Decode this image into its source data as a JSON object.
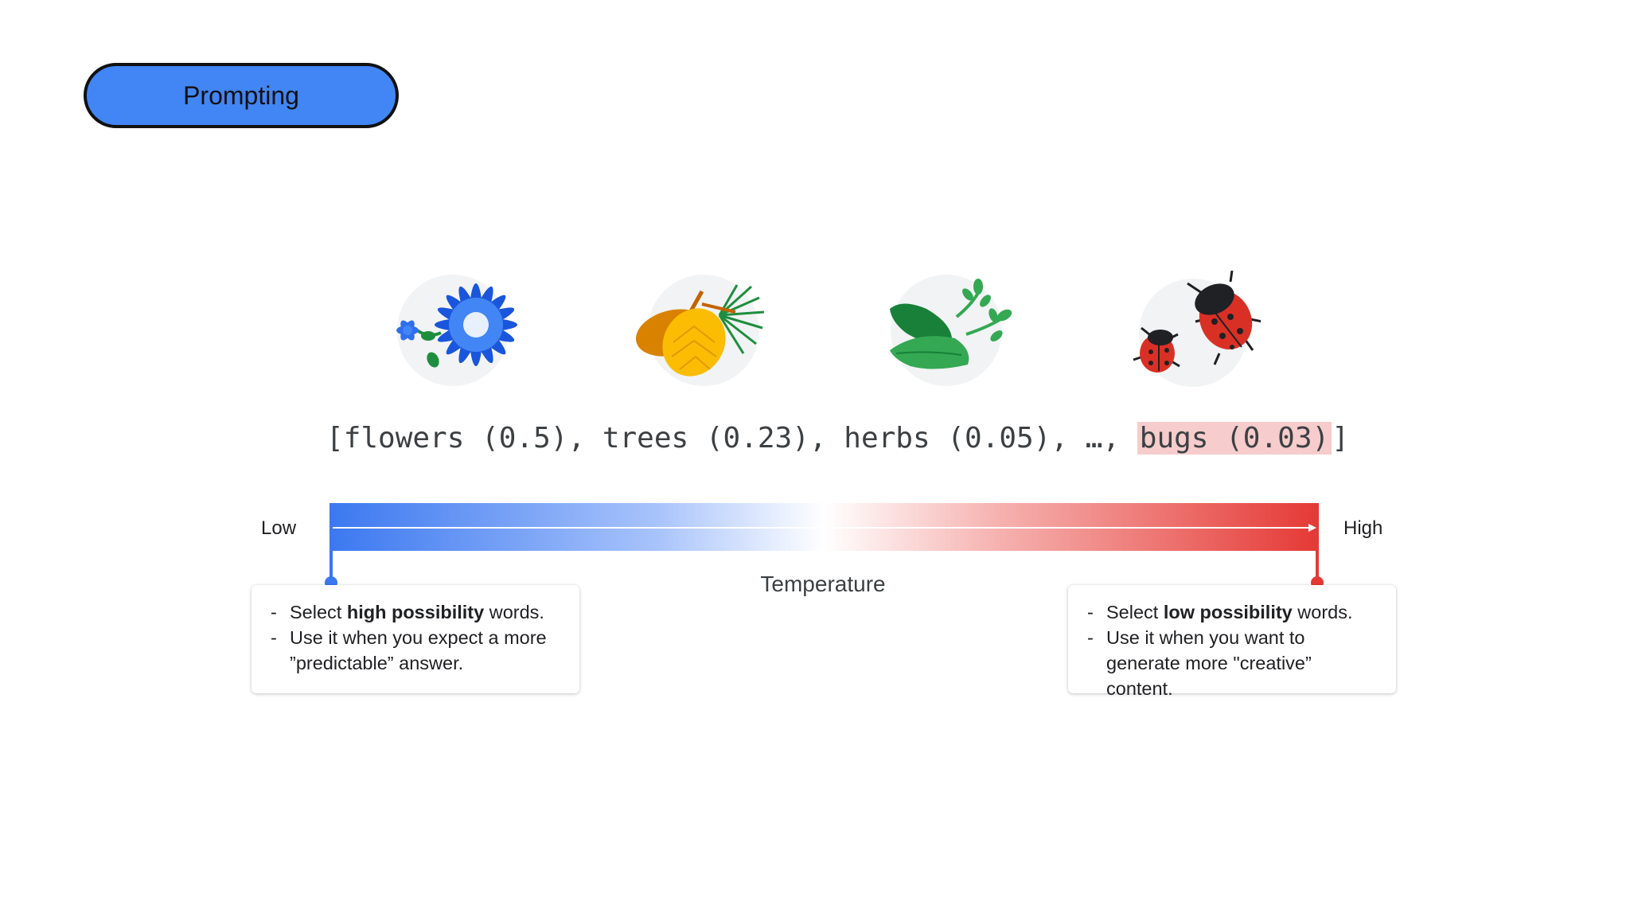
{
  "header": {
    "pill_label": "Prompting"
  },
  "tokens": {
    "open_bracket": "[",
    "items": [
      {
        "text": "flowers (0.5)",
        "separator": ", "
      },
      {
        "text": "trees (0.23)",
        "separator": ", "
      },
      {
        "text": "herbs (0.05)",
        "separator": ", "
      },
      {
        "text": "…",
        "separator": ", "
      }
    ],
    "highlighted": "bugs (0.03)",
    "close_bracket": "]"
  },
  "icons": [
    "flower-icon",
    "pinecone-icon",
    "herb-icon",
    "ladybug-icon"
  ],
  "scale": {
    "low_label": "Low",
    "high_label": "High",
    "axis_label": "Temperature",
    "low_color": "#3b78f0",
    "high_color": "#e53935"
  },
  "cards": {
    "low": {
      "item1_pre": "Select ",
      "item1_bold": "high possibility",
      "item1_post": " words.",
      "item2": "Use it when you expect a more ”predictable” answer."
    },
    "high": {
      "item1_pre": "Select ",
      "item1_bold": "low possibility",
      "item1_post": " words.",
      "item2": "Use it when you want to generate more \"creative” content."
    }
  }
}
